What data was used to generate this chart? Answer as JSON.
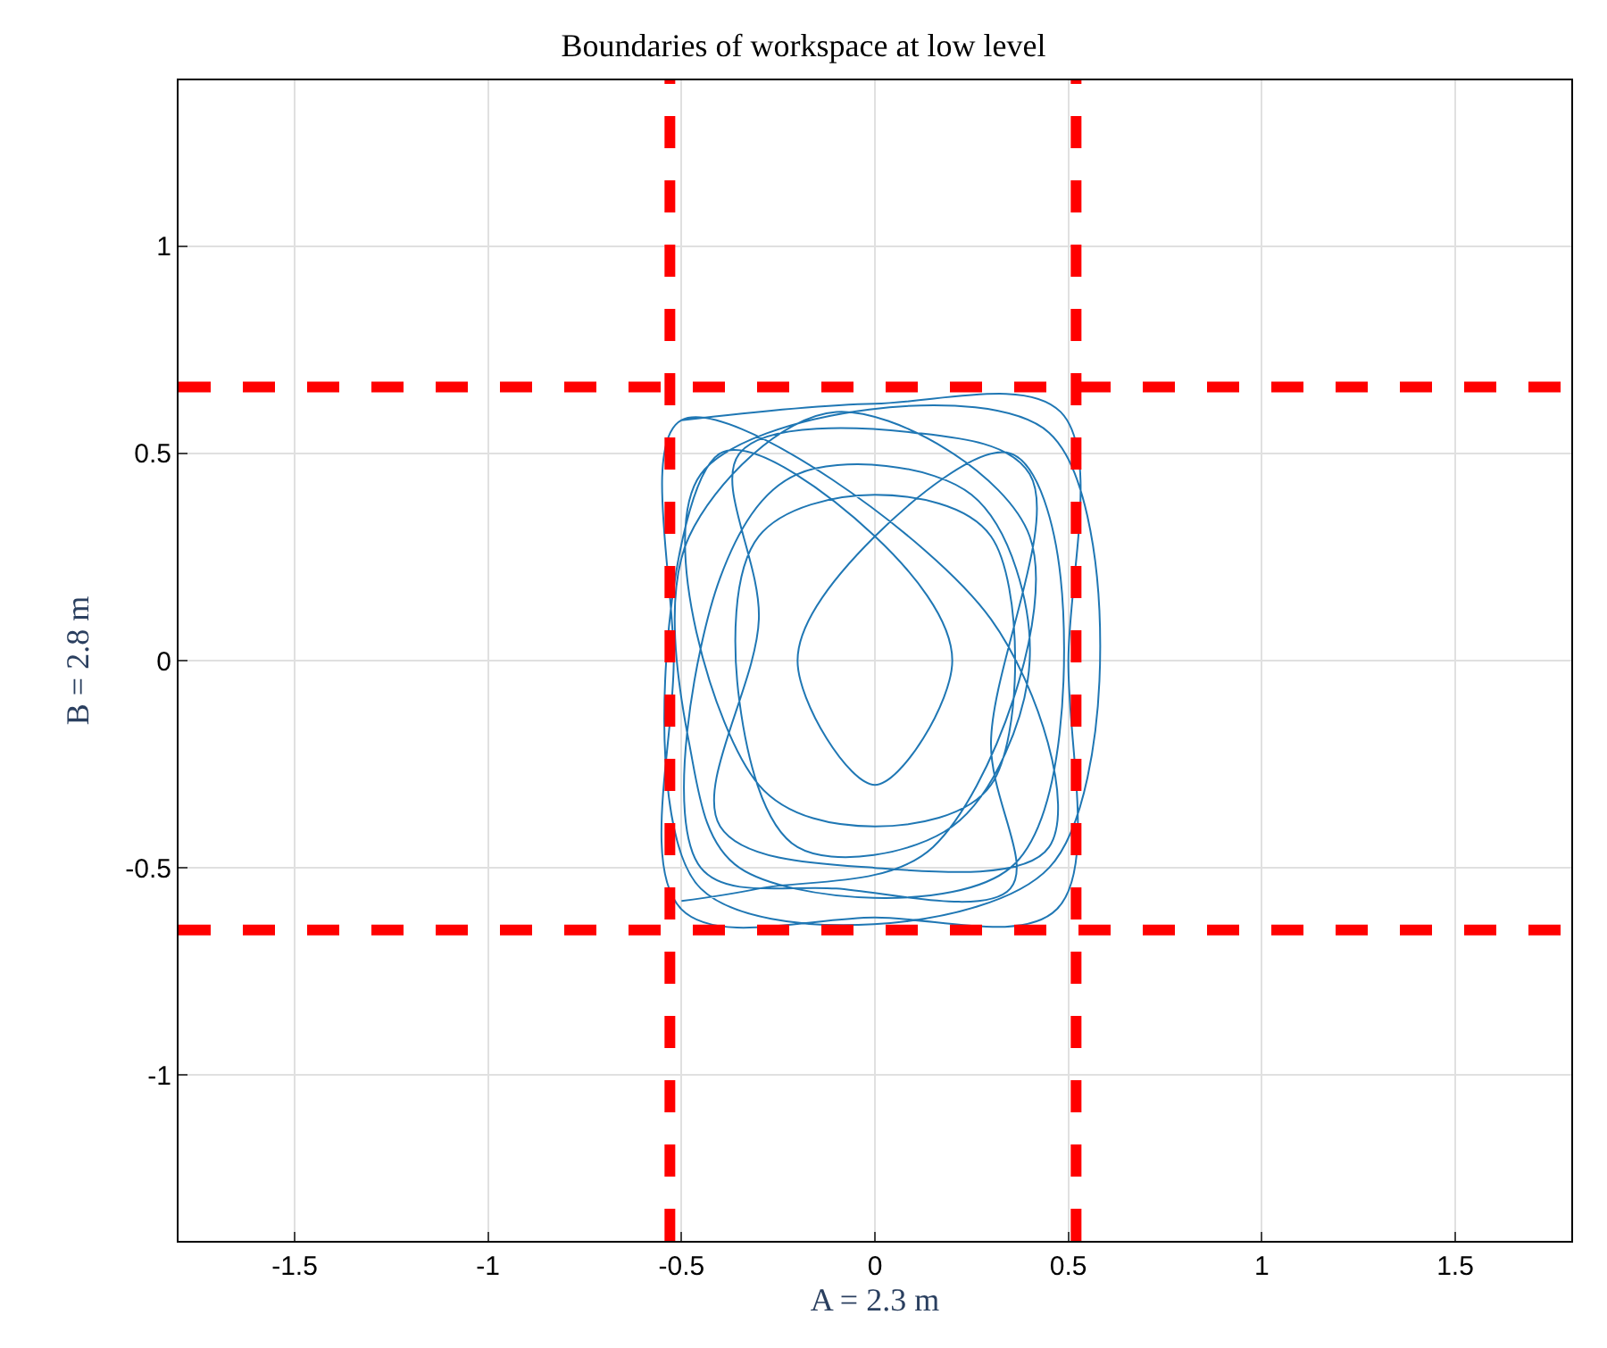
{
  "chart_data": {
    "type": "line",
    "title": "Boundaries of workspace at low level",
    "xlabel": "A = 2.3 m",
    "ylabel": "B = 2.8 m",
    "xlim": [
      -1.8,
      1.8
    ],
    "ylim": [
      -1.4,
      1.4
    ],
    "xticks": [
      -1.5,
      -1,
      -0.5,
      0,
      0.5,
      1,
      1.5
    ],
    "yticks": [
      -1,
      -0.5,
      0,
      0.5,
      1
    ],
    "grid": true,
    "series": [
      {
        "color": "#1f77b4",
        "x": [
          -0.5,
          0.0,
          0.48,
          0.5,
          0.47,
          0.0,
          -0.5,
          -0.52,
          -0.5,
          0.3,
          0.45,
          0.0,
          -0.4,
          -0.3,
          -0.35,
          0.1,
          0.4,
          0.3,
          0.35,
          -0.1,
          -0.45,
          -0.4,
          -0.2,
          0.25,
          0.4,
          0.2,
          -0.2,
          -0.35,
          -0.3,
          0.0,
          0.3,
          0.3,
          0.0,
          -0.3,
          -0.45,
          0.45,
          0.45,
          -0.45,
          -0.4,
          0.0,
          0.2,
          0.0,
          -0.2,
          0.0,
          0.35,
          0.48,
          0.35,
          -0.35,
          -0.48,
          -0.48,
          -0.1,
          0.4,
          0.15,
          -0.3,
          -0.5
        ],
        "values": [
          0.58,
          0.62,
          0.6,
          0.0,
          -0.6,
          -0.62,
          -0.6,
          0.0,
          0.58,
          0.1,
          -0.45,
          -0.5,
          -0.4,
          0.1,
          0.5,
          0.55,
          0.45,
          -0.2,
          -0.55,
          -0.55,
          -0.5,
          0.2,
          0.45,
          0.4,
          0.0,
          -0.4,
          -0.45,
          -0.1,
          0.3,
          0.4,
          0.3,
          -0.3,
          -0.4,
          -0.3,
          0.45,
          0.55,
          -0.5,
          -0.55,
          0.5,
          0.3,
          0.0,
          -0.3,
          0.0,
          0.3,
          0.5,
          0.2,
          -0.5,
          -0.5,
          -0.2,
          0.3,
          0.6,
          0.3,
          -0.45,
          -0.55,
          -0.58
        ]
      }
    ],
    "ref_lines": [
      {
        "axis": "x",
        "value": -0.53,
        "color": "#ff0000",
        "line_style": "dashed"
      },
      {
        "axis": "x",
        "value": 0.52,
        "color": "#ff0000",
        "line_style": "dashed"
      },
      {
        "axis": "y",
        "value": 0.66,
        "color": "#ff0000",
        "line_style": "dashed"
      },
      {
        "axis": "y",
        "value": -0.65,
        "color": "#ff0000",
        "line_style": "dashed"
      }
    ]
  }
}
